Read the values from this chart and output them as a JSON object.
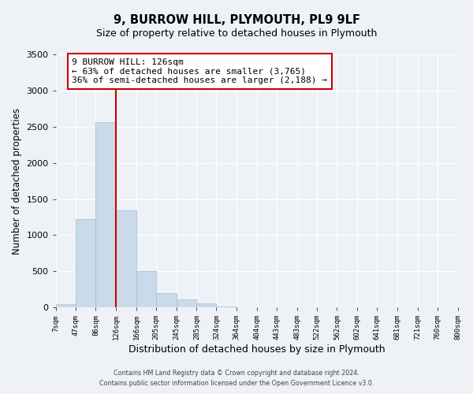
{
  "title": "9, BURROW HILL, PLYMOUTH, PL9 9LF",
  "subtitle": "Size of property relative to detached houses in Plymouth",
  "xlabel": "Distribution of detached houses by size in Plymouth",
  "ylabel": "Number of detached properties",
  "bar_color": "#c9daea",
  "bar_edge_color": "#a0bcd0",
  "property_line_color": "#cc0000",
  "property_value": 126,
  "annotation_title": "9 BURROW HILL: 126sqm",
  "annotation_line1": "← 63% of detached houses are smaller (3,765)",
  "annotation_line2": "36% of semi-detached houses are larger (2,188) →",
  "annotation_box_color": "#ffffff",
  "annotation_border_color": "#cc0000",
  "footer_line1": "Contains HM Land Registry data © Crown copyright and database right 2024.",
  "footer_line2": "Contains public sector information licensed under the Open Government Licence v3.0.",
  "bin_edges": [
    7,
    47,
    86,
    126,
    166,
    205,
    245,
    285,
    324,
    364,
    404,
    443,
    483,
    522,
    562,
    602,
    641,
    681,
    721,
    760,
    800
  ],
  "bin_labels": [
    "7sqm",
    "47sqm",
    "86sqm",
    "126sqm",
    "166sqm",
    "205sqm",
    "245sqm",
    "285sqm",
    "324sqm",
    "364sqm",
    "404sqm",
    "443sqm",
    "483sqm",
    "522sqm",
    "562sqm",
    "602sqm",
    "641sqm",
    "681sqm",
    "721sqm",
    "760sqm",
    "800sqm"
  ],
  "bar_heights": [
    50,
    1220,
    2560,
    1340,
    500,
    200,
    115,
    55,
    15,
    5,
    2,
    1,
    0,
    0,
    0,
    0,
    0,
    0,
    0,
    0
  ],
  "ylim": [
    0,
    3500
  ],
  "yticks": [
    0,
    500,
    1000,
    1500,
    2000,
    2500,
    3000,
    3500
  ],
  "background_color": "#eef2f7",
  "plot_bg_color": "#eef2f7",
  "grid_color": "#ffffff"
}
